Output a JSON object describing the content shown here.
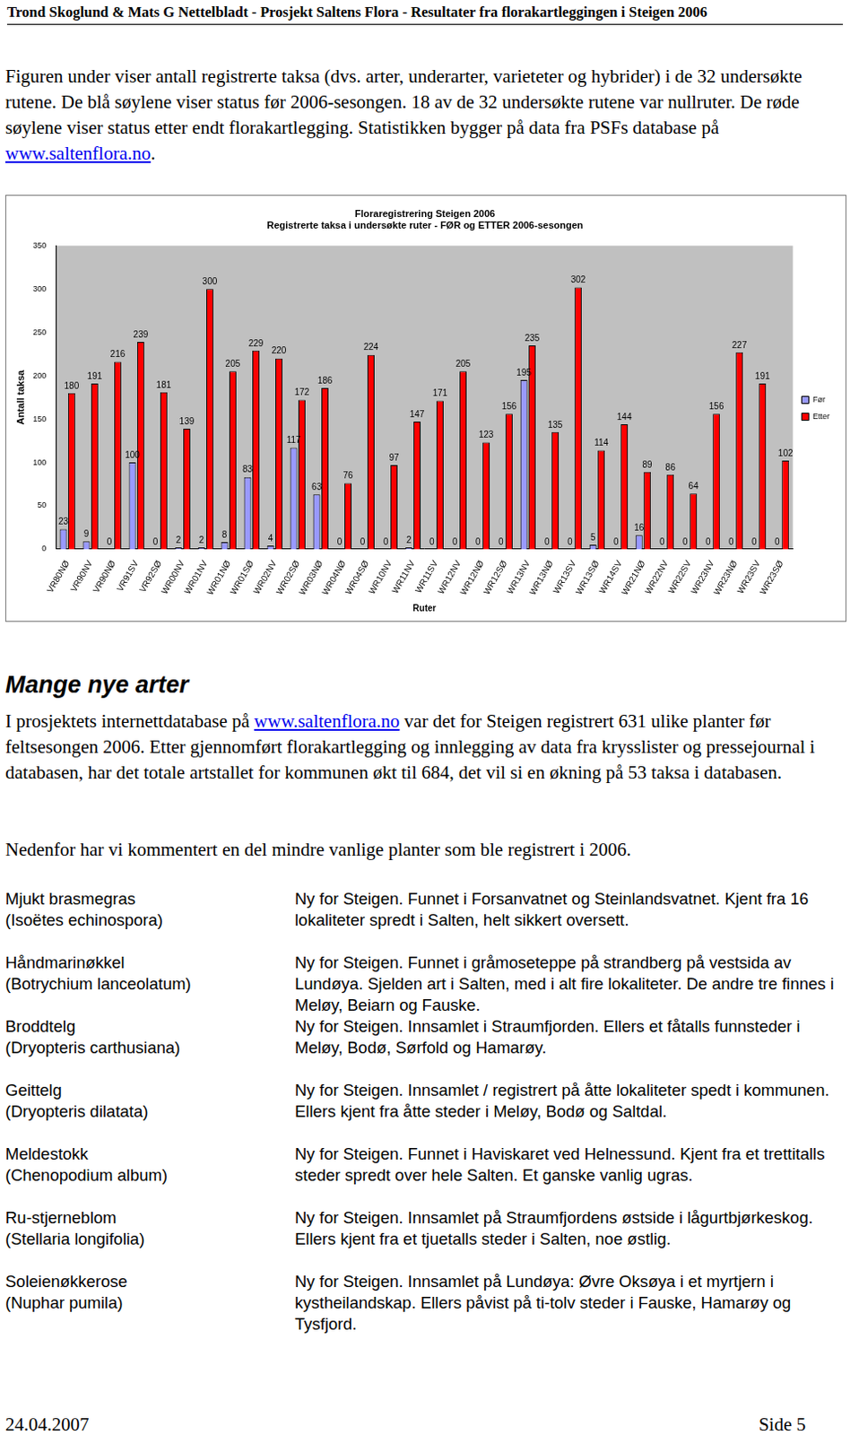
{
  "header": "Trond Skoglund & Mats G Nettelbladt - Prosjekt Saltens Flora - Resultater fra florakartleggingen i Steigen 2006",
  "intro": {
    "before": "Figuren under viser antall registrerte taksa (dvs. arter, underarter, varieteter og hybrider) i de 32 undersøkte rutene. De blå søylene viser status før 2006-sesongen. 18 av de 32 undersøkte rutene var nullruter. De røde søylene viser status etter endt florakartlegging. Statistikken bygger på data fra PSFs database på ",
    "link": "www.saltenflora.no",
    "after": "."
  },
  "chart_data": {
    "type": "bar",
    "title": [
      "Floraregistrering Steigen 2006",
      "Registrerte taksa i undersøkte ruter - FØR og ETTER 2006-sesongen"
    ],
    "x_label": "Ruter",
    "y_label": "Antall taksa",
    "categories": [
      "VR80NØ",
      "VR90NV",
      "VR90NØ",
      "VR91SV",
      "VR92SØ",
      "WR00NV",
      "WR01NV",
      "WR01NØ",
      "WR01SØ",
      "WR02NV",
      "WR02SØ",
      "WR03NØ",
      "WR04NØ",
      "WR04SØ",
      "WR10NV",
      "WR11NV",
      "WR11SV",
      "WR12NV",
      "WR12NØ",
      "WR12SØ",
      "WR13NV",
      "WR13NØ",
      "WR13SV",
      "WR13SØ",
      "WR14SV",
      "WR21NØ",
      "WR22NV",
      "WR22SV",
      "WR23NV",
      "WR23NØ",
      "WR23SV",
      "WR23SØ"
    ],
    "series": [
      {
        "name": "Før",
        "color": "#9999ff",
        "values": [
          23,
          9,
          0,
          100,
          0,
          2,
          2,
          8,
          83,
          4,
          117,
          63,
          0,
          0,
          0,
          2,
          0,
          0,
          0,
          0,
          195,
          0,
          0,
          5,
          0,
          16,
          0,
          0,
          0,
          0,
          0,
          0
        ]
      },
      {
        "name": "Etter",
        "color": "#ff0000",
        "values": [
          180,
          191,
          216,
          239,
          181,
          139,
          300,
          205,
          229,
          220,
          172,
          186,
          76,
          224,
          97,
          147,
          171,
          205,
          123,
          156,
          235,
          135,
          302,
          114,
          144,
          89,
          86,
          64,
          156,
          227,
          191,
          102
        ]
      }
    ],
    "ylim": [
      0,
      350
    ],
    "yticks": [
      0,
      50,
      100,
      150,
      200,
      250,
      300,
      350
    ],
    "grid": false,
    "legend": "right",
    "data_labels": true
  },
  "heading": "Mange nye arter",
  "paragraph1": {
    "before": "I prosjektets internettdatabase på ",
    "link": "www.saltenflora.no",
    "after": " var det for Steigen registrert 631 ulike planter før feltsesongen 2006. Etter gjennomført florakartlegging og innlegging av data fra krysslister og pressejournal i databasen, har det totale artstallet for kommunen økt til 684, det vil si en økning på 53 taksa i databasen."
  },
  "paragraph2": "Nedenfor har vi kommentert en del mindre vanlige planter som ble registrert i 2006.",
  "species": [
    {
      "name": "Mjukt brasmegras",
      "latin": "(Isoëtes echinospora)",
      "comment": "Ny for Steigen. Funnet i Forsanvatnet og Steinlandsvatnet. Kjent fra 16 lokaliteter spredt i Salten, helt sikkert oversett."
    },
    {
      "name": "Håndmarinøkkel",
      "latin": "(Botrychium lanceolatum)",
      "comment": "Ny for Steigen. Funnet i gråmoseteppe på strandberg på vestsida av Lundøya. Sjelden art i Salten, med i alt fire lokaliteter. De andre tre finnes i Meløy, Beiarn og Fauske."
    },
    {
      "name": "Broddtelg",
      "latin": "(Dryopteris carthusiana)",
      "comment": "Ny for Steigen. Innsamlet i Straumfjorden. Ellers et fåtalls funnsteder i Meløy, Bodø, Sørfold og Hamarøy."
    },
    {
      "name": "Geittelg",
      "latin": "(Dryopteris dilatata)",
      "comment": "Ny for Steigen. Innsamlet / registrert på åtte lokaliteter spedt i kommunen. Ellers kjent fra åtte steder i Meløy, Bodø og Saltdal."
    },
    {
      "name": "Meldestokk",
      "latin": "(Chenopodium album)",
      "comment": "Ny for Steigen. Funnet i Haviskaret ved Helnessund. Kjent fra et trettitalls steder spredt over hele Salten.  Et ganske vanlig ugras."
    },
    {
      "name": "Ru-stjerneblom",
      "latin": "(Stellaria longifolia)",
      "comment": "Ny for Steigen. Innsamlet på Straumfjordens østside i lågurtbjørkeskog. Ellers kjent fra et tjuetalls steder i Salten, noe østlig."
    },
    {
      "name": "Soleienøkkerose",
      "latin": "(Nuphar pumila)",
      "comment": "Ny for Steigen. Innsamlet på Lundøya: Øvre Oksøya i et myrtjern i kystheilandskap. Ellers påvist på ti-tolv steder i Fauske, Hamarøy og Tysfjord."
    }
  ],
  "footer": {
    "date": "24.04.2007",
    "page": "Side 5"
  }
}
